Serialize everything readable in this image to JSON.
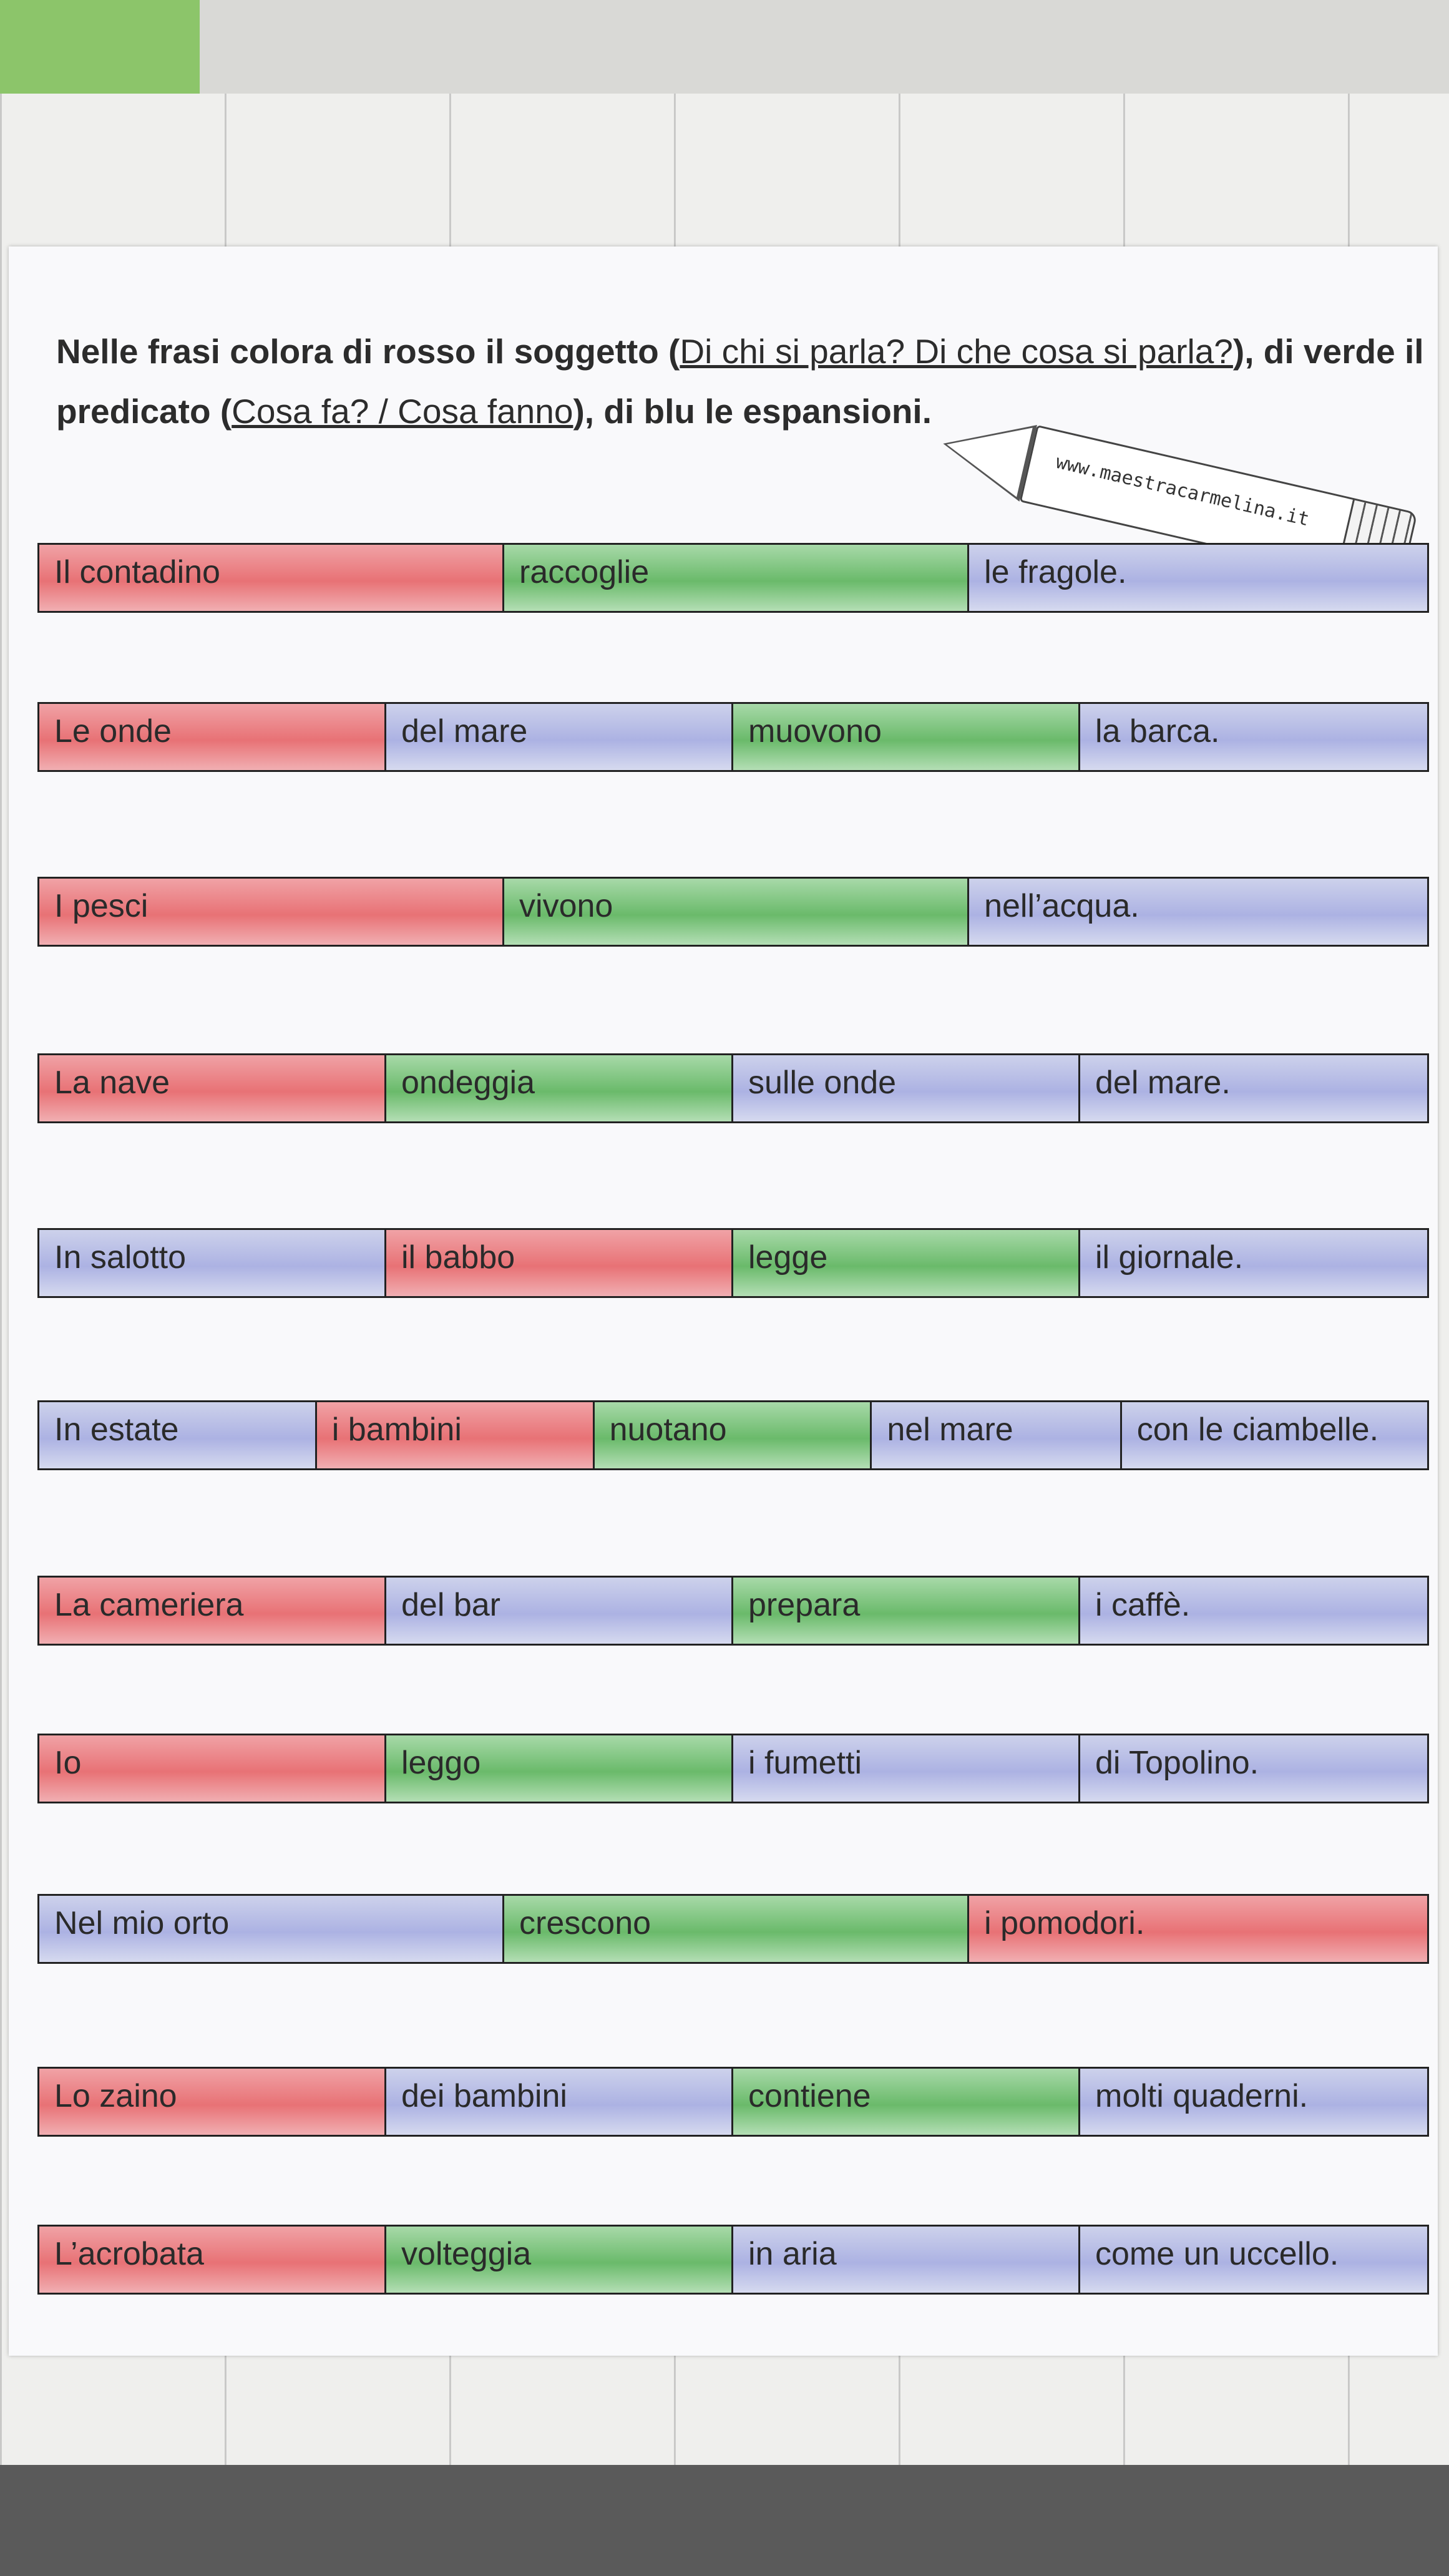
{
  "instructions": {
    "part1": "Nelle frasi colora di rosso il soggetto (",
    "subject_question": "Di chi si parla? Di che cosa si parla?",
    "part2": "), di verde il predicato (",
    "predicate_question": "Cosa fa? / Cosa fanno",
    "part3": "), di blu le espansioni."
  },
  "watermark": "www.maestracarmelina.it",
  "colors": {
    "soggetto": "#e2474c",
    "predicato": "#4fb24f",
    "espansione": "#7f8bd6"
  },
  "sentences": [
    {
      "parts": [
        {
          "text": "Il contadino",
          "role": "soggetto"
        },
        {
          "text": "raccoglie",
          "role": "predicato"
        },
        {
          "text": "le fragole.",
          "role": "espansione"
        }
      ]
    },
    {
      "parts": [
        {
          "text": "Le onde",
          "role": "soggetto"
        },
        {
          "text": "del mare",
          "role": "espansione"
        },
        {
          "text": "muovono",
          "role": "predicato"
        },
        {
          "text": "la barca.",
          "role": "espansione"
        }
      ]
    },
    {
      "parts": [
        {
          "text": "I pesci",
          "role": "soggetto"
        },
        {
          "text": "vivono",
          "role": "predicato"
        },
        {
          "text": "nell’acqua.",
          "role": "espansione"
        }
      ]
    },
    {
      "parts": [
        {
          "text": "La nave",
          "role": "soggetto"
        },
        {
          "text": "ondeggia",
          "role": "predicato"
        },
        {
          "text": "sulle onde",
          "role": "espansione"
        },
        {
          "text": "del mare.",
          "role": "espansione"
        }
      ]
    },
    {
      "parts": [
        {
          "text": "In salotto",
          "role": "espansione"
        },
        {
          "text": "il babbo",
          "role": "soggetto"
        },
        {
          "text": "legge",
          "role": "predicato"
        },
        {
          "text": "il giornale.",
          "role": "espansione"
        }
      ]
    },
    {
      "parts": [
        {
          "text": "In estate",
          "role": "espansione"
        },
        {
          "text": "i bambini",
          "role": "soggetto"
        },
        {
          "text": "nuotano",
          "role": "predicato"
        },
        {
          "text": "nel mare",
          "role": "espansione"
        },
        {
          "text": "con le ciambelle.",
          "role": "espansione"
        }
      ]
    },
    {
      "parts": [
        {
          "text": "La cameriera",
          "role": "soggetto"
        },
        {
          "text": "del bar",
          "role": "espansione"
        },
        {
          "text": "prepara",
          "role": "predicato"
        },
        {
          "text": "i caffè.",
          "role": "espansione"
        }
      ]
    },
    {
      "parts": [
        {
          "text": "Io",
          "role": "soggetto"
        },
        {
          "text": "leggo",
          "role": "predicato"
        },
        {
          "text": "i fumetti",
          "role": "espansione"
        },
        {
          "text": "di Topolino.",
          "role": "espansione"
        }
      ]
    },
    {
      "parts": [
        {
          "text": "Nel mio orto",
          "role": "espansione"
        },
        {
          "text": "crescono",
          "role": "predicato"
        },
        {
          "text": "i pomodori.",
          "role": "soggetto"
        }
      ]
    },
    {
      "parts": [
        {
          "text": "Lo zaino",
          "role": "soggetto"
        },
        {
          "text": "dei bambini",
          "role": "espansione"
        },
        {
          "text": "contiene",
          "role": "predicato"
        },
        {
          "text": "molti quaderni.",
          "role": "espansione"
        }
      ]
    },
    {
      "parts": [
        {
          "text": "L’acrobata",
          "role": "soggetto"
        },
        {
          "text": "volteggia",
          "role": "predicato"
        },
        {
          "text": "in aria",
          "role": "espansione"
        },
        {
          "text": "come un uccello.",
          "role": "espansione"
        }
      ]
    }
  ]
}
